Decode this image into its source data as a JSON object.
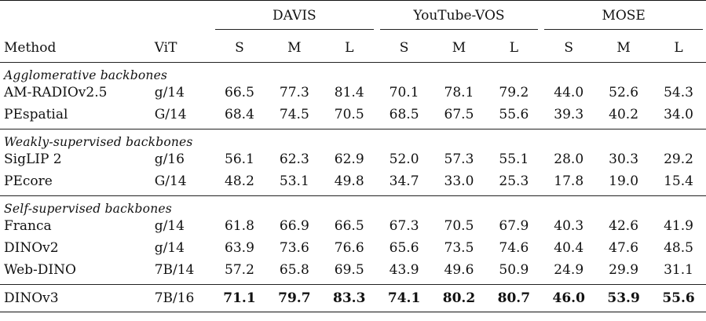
{
  "header": {
    "method_label": "Method",
    "vit_label": "ViT",
    "datasets": [
      "DAVIS",
      "YouTube-VOS",
      "MOSE"
    ],
    "sizes": [
      "S",
      "M",
      "L"
    ]
  },
  "sections": [
    {
      "title": "Agglomerative backbones",
      "rows": [
        {
          "method": "AM-RADIOv2.5",
          "vit": "g/14",
          "values": [
            "66.5",
            "77.3",
            "81.4",
            "70.1",
            "78.1",
            "79.2",
            "44.0",
            "52.6",
            "54.3"
          ]
        },
        {
          "method": "PEspatial",
          "vit": "G/14",
          "values": [
            "68.4",
            "74.5",
            "70.5",
            "68.5",
            "67.5",
            "55.6",
            "39.3",
            "40.2",
            "34.0"
          ]
        }
      ]
    },
    {
      "title": "Weakly-supervised backbones",
      "rows": [
        {
          "method": "SigLIP 2",
          "vit": "g/16",
          "values": [
            "56.1",
            "62.3",
            "62.9",
            "52.0",
            "57.3",
            "55.1",
            "28.0",
            "30.3",
            "29.2"
          ]
        },
        {
          "method": "PEcore",
          "vit": "G/14",
          "values": [
            "48.2",
            "53.1",
            "49.8",
            "34.7",
            "33.0",
            "25.3",
            "17.8",
            "19.0",
            "15.4"
          ]
        }
      ]
    },
    {
      "title": "Self-supervised backbones",
      "rows": [
        {
          "method": "Franca",
          "vit": "g/14",
          "values": [
            "61.8",
            "66.9",
            "66.5",
            "67.3",
            "70.5",
            "67.9",
            "40.3",
            "42.6",
            "41.9"
          ]
        },
        {
          "method": "DINOv2",
          "vit": "g/14",
          "values": [
            "63.9",
            "73.6",
            "76.6",
            "65.6",
            "73.5",
            "74.6",
            "40.4",
            "47.6",
            "48.5"
          ]
        },
        {
          "method": "Web-DINO",
          "vit": "7B/14",
          "values": [
            "57.2",
            "65.8",
            "69.5",
            "43.9",
            "49.6",
            "50.9",
            "24.9",
            "29.9",
            "31.1"
          ]
        }
      ]
    }
  ],
  "final_row": {
    "method": "DINOv3",
    "vit": "7B/16",
    "values": [
      "71.1",
      "79.7",
      "83.3",
      "74.1",
      "80.2",
      "80.7",
      "46.0",
      "53.9",
      "55.6"
    ]
  }
}
